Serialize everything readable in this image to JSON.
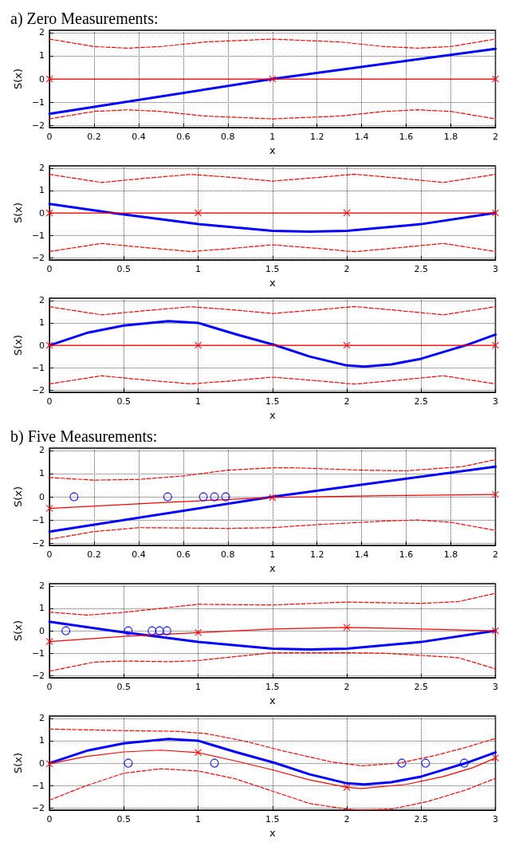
{
  "chart_data": [
    {
      "type": "line",
      "title": "a) Zero Measurements:",
      "xlabel": "x",
      "ylabel": "S(x)",
      "xlim": [
        0,
        2
      ],
      "xticks": [
        0,
        0.2,
        0.4,
        0.6,
        0.8,
        1,
        1.2,
        1.4,
        1.6,
        1.8,
        2
      ],
      "ylim": [
        -2.1,
        2.1
      ],
      "yticks": [
        -2,
        -1,
        0,
        1,
        2
      ],
      "grid": true,
      "series": [
        {
          "color": "#0000ff",
          "marker": "none",
          "line_style": "solid",
          "x": [
            0,
            1,
            2
          ],
          "values": [
            -1.5,
            0,
            1.3
          ]
        },
        {
          "color": "#ff0000",
          "marker": "none",
          "line_style": "solid",
          "x": [
            0,
            1,
            2
          ],
          "values": [
            0,
            0,
            0
          ]
        },
        {
          "type": "scatter",
          "color": "#ff0000",
          "marker": "cross",
          "x": [
            0,
            1,
            2
          ],
          "values": [
            0,
            0,
            0
          ]
        },
        {
          "color": "#ff0000",
          "marker": "none",
          "line_style": "dashed",
          "x": [
            0,
            0.2,
            0.35,
            0.5,
            0.7,
            1,
            1.3,
            1.5,
            1.65,
            1.8,
            2
          ],
          "values": [
            1.72,
            1.4,
            1.33,
            1.4,
            1.6,
            1.72,
            1.6,
            1.4,
            1.33,
            1.4,
            1.72
          ]
        },
        {
          "color": "#ff0000",
          "marker": "none",
          "line_style": "dashed",
          "x": [
            0,
            0.2,
            0.35,
            0.5,
            0.7,
            1,
            1.3,
            1.5,
            1.65,
            1.8,
            2
          ],
          "values": [
            -1.72,
            -1.4,
            -1.33,
            -1.4,
            -1.6,
            -1.72,
            -1.6,
            -1.4,
            -1.33,
            -1.4,
            -1.72
          ]
        }
      ]
    },
    {
      "type": "line",
      "xlabel": "x",
      "ylabel": "S(x)",
      "xlim": [
        0,
        3
      ],
      "xticks": [
        0,
        0.5,
        1,
        1.5,
        2,
        2.5,
        3
      ],
      "ylim": [
        -2.1,
        2.1
      ],
      "yticks": [
        -2,
        -1,
        0,
        1,
        2
      ],
      "grid": true,
      "series": [
        {
          "color": "#0000ff",
          "marker": "none",
          "line_style": "solid",
          "x": [
            0,
            0.42,
            1,
            1.5,
            1.75,
            2,
            2.5,
            3
          ],
          "values": [
            0.4,
            0,
            -0.5,
            -0.8,
            -0.83,
            -0.8,
            -0.5,
            0
          ]
        },
        {
          "color": "#ff0000",
          "marker": "none",
          "line_style": "solid",
          "x": [
            0,
            3
          ],
          "values": [
            0,
            0
          ]
        },
        {
          "type": "scatter",
          "color": "#ff0000",
          "marker": "cross",
          "x": [
            0,
            1,
            2,
            3
          ],
          "values": [
            0,
            0,
            0,
            0
          ]
        },
        {
          "color": "#ff0000",
          "marker": "none",
          "line_style": "dashed",
          "x": [
            0,
            0.35,
            0.65,
            0.95,
            1.2,
            1.5,
            1.8,
            2.05,
            2.35,
            2.65,
            3
          ],
          "values": [
            1.72,
            1.36,
            1.55,
            1.72,
            1.6,
            1.42,
            1.58,
            1.73,
            1.55,
            1.36,
            1.72
          ]
        },
        {
          "color": "#ff0000",
          "marker": "none",
          "line_style": "dashed",
          "x": [
            0,
            0.35,
            0.65,
            0.95,
            1.2,
            1.5,
            1.8,
            2.05,
            2.35,
            2.65,
            3
          ],
          "values": [
            -1.72,
            -1.36,
            -1.55,
            -1.72,
            -1.6,
            -1.42,
            -1.58,
            -1.73,
            -1.55,
            -1.36,
            -1.72
          ]
        }
      ]
    },
    {
      "type": "line",
      "xlabel": "x",
      "ylabel": "S(x)",
      "xlim": [
        0,
        3
      ],
      "xticks": [
        0,
        0.5,
        1,
        1.5,
        2,
        2.5,
        3
      ],
      "ylim": [
        -2.1,
        2.1
      ],
      "yticks": [
        -2,
        -1,
        0,
        1,
        2
      ],
      "grid": true,
      "series": [
        {
          "color": "#0000ff",
          "marker": "none",
          "line_style": "solid",
          "x": [
            0,
            0.25,
            0.5,
            0.8,
            1,
            1.25,
            1.52,
            1.75,
            2,
            2.12,
            2.3,
            2.5,
            2.7,
            2.8,
            3
          ],
          "values": [
            0,
            0.55,
            0.88,
            1.08,
            1,
            0.5,
            0,
            -0.5,
            -0.9,
            -0.95,
            -0.85,
            -0.6,
            -0.2,
            0,
            0.48
          ]
        },
        {
          "color": "#ff0000",
          "marker": "none",
          "line_style": "solid",
          "x": [
            0,
            3
          ],
          "values": [
            0,
            0
          ]
        },
        {
          "type": "scatter",
          "color": "#ff0000",
          "marker": "cross",
          "x": [
            0,
            1,
            2,
            3
          ],
          "values": [
            0,
            0,
            0,
            0
          ]
        },
        {
          "color": "#ff0000",
          "marker": "none",
          "line_style": "dashed",
          "x": [
            0,
            0.35,
            0.65,
            0.95,
            1.2,
            1.5,
            1.8,
            2.05,
            2.35,
            2.65,
            3
          ],
          "values": [
            1.72,
            1.36,
            1.55,
            1.72,
            1.6,
            1.42,
            1.58,
            1.73,
            1.55,
            1.36,
            1.72
          ]
        },
        {
          "color": "#ff0000",
          "marker": "none",
          "line_style": "dashed",
          "x": [
            0,
            0.35,
            0.65,
            0.95,
            1.2,
            1.5,
            1.8,
            2.05,
            2.35,
            2.65,
            3
          ],
          "values": [
            -1.72,
            -1.36,
            -1.55,
            -1.72,
            -1.6,
            -1.42,
            -1.58,
            -1.73,
            -1.55,
            -1.36,
            -1.72
          ]
        }
      ]
    },
    {
      "type": "line",
      "title": "b) Five Measurements:",
      "xlabel": "x",
      "ylabel": "S(x)",
      "xlim": [
        0,
        2
      ],
      "xticks": [
        0,
        0.2,
        0.4,
        0.6,
        0.8,
        1,
        1.2,
        1.4,
        1.6,
        1.8,
        2
      ],
      "ylim": [
        -2.1,
        2.1
      ],
      "yticks": [
        -2,
        -1,
        0,
        1,
        2
      ],
      "grid": true,
      "series": [
        {
          "color": "#0000ff",
          "marker": "none",
          "line_style": "solid",
          "x": [
            0,
            1,
            2
          ],
          "values": [
            -1.5,
            0,
            1.3
          ]
        },
        {
          "color": "#ff0000",
          "marker": "none",
          "line_style": "solid",
          "x": [
            0,
            0.5,
            1,
            1.5,
            2
          ],
          "values": [
            -0.5,
            -0.25,
            -0.03,
            0.05,
            0.1
          ]
        },
        {
          "type": "scatter",
          "color": "#ff0000",
          "marker": "cross",
          "x": [
            0,
            1,
            2
          ],
          "values": [
            -0.5,
            -0.03,
            0.1
          ]
        },
        {
          "color": "#ff0000",
          "marker": "none",
          "line_style": "dashed",
          "x": [
            0,
            0.2,
            0.4,
            0.6,
            0.8,
            1,
            1.1,
            1.4,
            1.6,
            1.85,
            2
          ],
          "values": [
            0.83,
            0.72,
            0.75,
            0.9,
            1.15,
            1.25,
            1.25,
            1.15,
            1.12,
            1.3,
            1.6
          ]
        },
        {
          "color": "#ff0000",
          "marker": "none",
          "line_style": "dashed",
          "x": [
            0,
            0.2,
            0.4,
            0.8,
            1,
            1.2,
            1.5,
            1.65,
            1.8,
            2
          ],
          "values": [
            -1.83,
            -1.5,
            -1.33,
            -1.36,
            -1.33,
            -1.2,
            -1.05,
            -1,
            -1.1,
            -1.45
          ]
        },
        {
          "type": "scatter",
          "color": "#0000ff",
          "marker": "circle",
          "x": [
            0.11,
            0.53,
            0.69,
            0.74,
            0.79
          ],
          "values": [
            0,
            0,
            0,
            0,
            0
          ]
        }
      ]
    },
    {
      "type": "line",
      "xlabel": "x",
      "ylabel": "S(x)",
      "xlim": [
        0,
        3
      ],
      "xticks": [
        0,
        0.5,
        1,
        1.5,
        2,
        2.5,
        3
      ],
      "ylim": [
        -2.1,
        2.1
      ],
      "yticks": [
        -2,
        -1,
        0,
        1,
        2
      ],
      "grid": true,
      "series": [
        {
          "color": "#0000ff",
          "marker": "none",
          "line_style": "solid",
          "x": [
            0,
            0.42,
            1,
            1.5,
            1.75,
            2,
            2.5,
            3
          ],
          "values": [
            0.4,
            0,
            -0.5,
            -0.8,
            -0.83,
            -0.8,
            -0.5,
            0
          ]
        },
        {
          "color": "#ff0000",
          "marker": "none",
          "line_style": "solid",
          "x": [
            0,
            0.5,
            1,
            1.5,
            2,
            2.5,
            3
          ],
          "values": [
            -0.48,
            -0.25,
            -0.08,
            0.08,
            0.15,
            0.08,
            0
          ]
        },
        {
          "type": "scatter",
          "color": "#ff0000",
          "marker": "cross",
          "x": [
            0,
            1,
            2,
            3
          ],
          "values": [
            -0.48,
            -0.08,
            0.15,
            0
          ]
        },
        {
          "color": "#ff0000",
          "marker": "none",
          "line_style": "dashed",
          "x": [
            0,
            0.25,
            0.5,
            0.75,
            1,
            1.5,
            2,
            2.5,
            2.75,
            3
          ],
          "values": [
            0.83,
            0.7,
            0.82,
            1,
            1.18,
            1.15,
            1.28,
            1.22,
            1.3,
            1.67
          ]
        },
        {
          "color": "#ff0000",
          "marker": "none",
          "line_style": "dashed",
          "x": [
            0,
            0.3,
            0.5,
            0.8,
            1,
            1.25,
            1.5,
            2,
            2.25,
            2.75,
            3
          ],
          "values": [
            -1.8,
            -1.4,
            -1.35,
            -1.38,
            -1.33,
            -1.15,
            -0.98,
            -0.98,
            -1,
            -1.2,
            -1.7
          ]
        },
        {
          "type": "scatter",
          "color": "#0000ff",
          "marker": "circle",
          "x": [
            0.11,
            0.53,
            0.69,
            0.74,
            0.79
          ],
          "values": [
            0,
            0,
            0,
            0,
            0
          ]
        }
      ]
    },
    {
      "type": "line",
      "xlabel": "x",
      "ylabel": "S(x)",
      "xlim": [
        0,
        3
      ],
      "xticks": [
        0,
        0.5,
        1,
        1.5,
        2,
        2.5,
        3
      ],
      "ylim": [
        -2.1,
        2.1
      ],
      "yticks": [
        -2,
        -1,
        0,
        1,
        2
      ],
      "grid": true,
      "series": [
        {
          "color": "#0000ff",
          "marker": "none",
          "line_style": "solid",
          "x": [
            0,
            0.25,
            0.5,
            0.8,
            1,
            1.25,
            1.52,
            1.75,
            2,
            2.12,
            2.3,
            2.5,
            2.7,
            2.8,
            3
          ],
          "values": [
            0,
            0.55,
            0.88,
            1.08,
            1,
            0.5,
            0,
            -0.5,
            -0.9,
            -0.95,
            -0.85,
            -0.6,
            -0.2,
            0,
            0.48
          ]
        },
        {
          "color": "#ff0000",
          "marker": "none",
          "line_style": "solid",
          "x": [
            0,
            0.25,
            0.5,
            0.75,
            1,
            1.25,
            1.5,
            1.75,
            2,
            2.1,
            2.4,
            2.65,
            2.85,
            3
          ],
          "values": [
            -0.03,
            0.3,
            0.5,
            0.58,
            0.47,
            0.1,
            -0.3,
            -0.75,
            -1.08,
            -1.13,
            -0.95,
            -0.6,
            -0.2,
            0.23
          ]
        },
        {
          "type": "scatter",
          "color": "#ff0000",
          "marker": "cross",
          "x": [
            0,
            1,
            2,
            3
          ],
          "values": [
            -0.03,
            0.47,
            -1.08,
            0.23
          ]
        },
        {
          "color": "#ff0000",
          "marker": "none",
          "line_style": "dashed",
          "x": [
            0,
            0.5,
            0.85,
            1.05,
            1.3,
            1.6,
            1.9,
            2.1,
            2.35,
            2.6,
            2.8,
            3
          ],
          "values": [
            1.52,
            1.45,
            1.42,
            1.32,
            1,
            0.5,
            0.05,
            -0.12,
            0,
            0.35,
            0.7,
            1.1
          ]
        },
        {
          "color": "#ff0000",
          "marker": "none",
          "line_style": "dashed",
          "x": [
            0,
            0.25,
            0.5,
            0.75,
            1,
            1.25,
            1.5,
            1.75,
            2,
            2.1,
            2.3,
            2.55,
            2.8,
            3
          ],
          "values": [
            -1.65,
            -1,
            -0.45,
            -0.25,
            -0.35,
            -0.7,
            -1.25,
            -1.8,
            -2.05,
            -2.1,
            -2.05,
            -1.7,
            -1.2,
            -0.68
          ]
        },
        {
          "type": "scatter",
          "color": "#0000ff",
          "marker": "circle",
          "x": [
            0.53,
            1.11,
            2.37,
            2.53,
            2.79
          ],
          "values": [
            0,
            0,
            0,
            0,
            0
          ]
        }
      ]
    }
  ]
}
